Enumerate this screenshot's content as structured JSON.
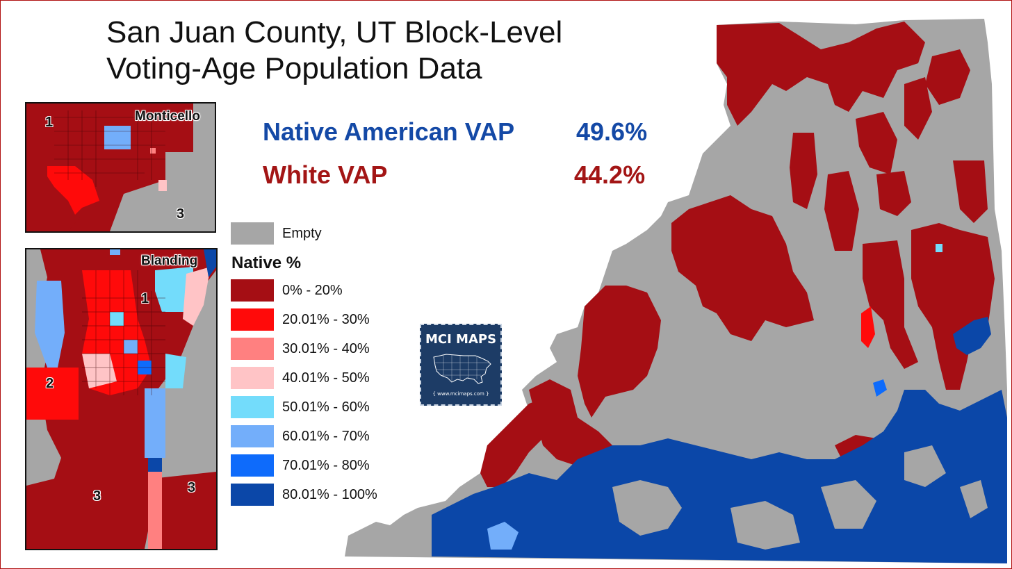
{
  "title": {
    "line1": "San Juan County, UT Block-Level",
    "line2": "Voting-Age Population Data"
  },
  "stats": {
    "native_label": "Native American VAP",
    "native_value": "49.6%",
    "white_label": "White VAP",
    "white_value": "44.2%"
  },
  "legend": {
    "empty_label": "Empty",
    "heading": "Native  %",
    "items": [
      {
        "label": "0% - 20%",
        "color": "#a50e14"
      },
      {
        "label": "20.01% - 30%",
        "color": "#ff0a0a"
      },
      {
        "label": "30.01% - 40%",
        "color": "#ff8080"
      },
      {
        "label": "40.01% - 50%",
        "color": "#ffc4c6"
      },
      {
        "label": "50.01% - 60%",
        "color": "#73dcfb"
      },
      {
        "label": "60.01% - 70%",
        "color": "#73aefa"
      },
      {
        "label": "70.01% - 80%",
        "color": "#0e6bfb"
      },
      {
        "label": "80.01% - 100%",
        "color": "#0b47a8"
      }
    ]
  },
  "colors": {
    "empty": "#a6a6a6",
    "border": "#b01010"
  },
  "insets": {
    "monticello": {
      "name": "Monticello",
      "districts": [
        "1",
        "3"
      ]
    },
    "blanding": {
      "name": "Blanding",
      "districts": [
        "1",
        "2",
        "3",
        "3"
      ]
    }
  },
  "logo": {
    "title": "MCI MAPS",
    "url": "{ www.mcimaps.com }",
    "icon": "usa-map-icon"
  }
}
